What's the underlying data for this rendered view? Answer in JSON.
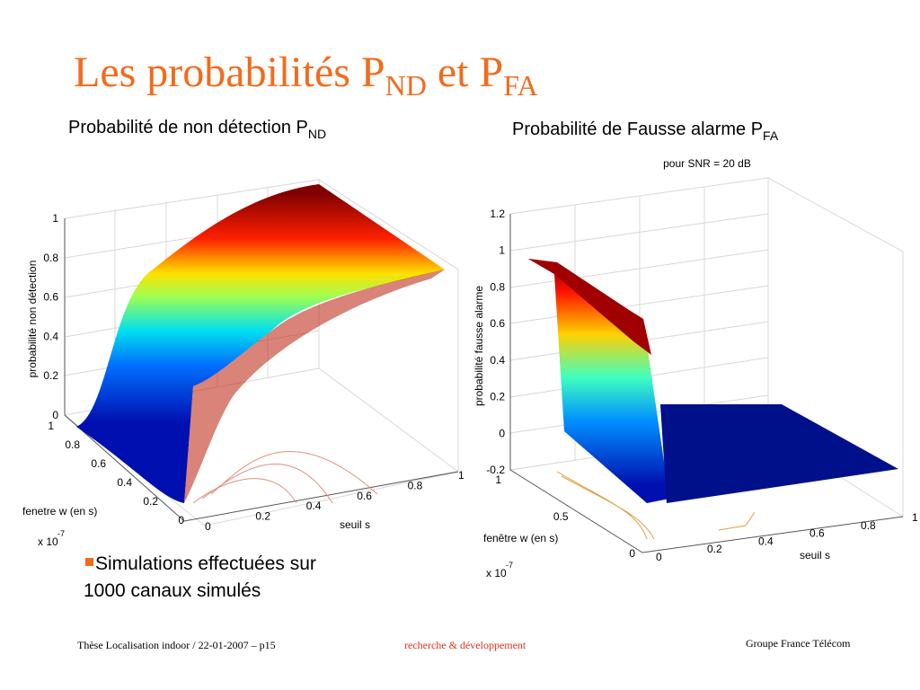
{
  "title": {
    "main": "Les probabilités P",
    "sub1": "ND",
    "mid": " et P",
    "sub2": "FA"
  },
  "plots": [
    {
      "heading": "Probabilité de non détection P",
      "heading_sub": "ND",
      "zlabel": "probabilité non détection",
      "zticks": [
        "0",
        "0.2",
        "0.4",
        "0.6",
        "0.8",
        "1"
      ],
      "wlabel": "fenetre w (en s)",
      "wticks": [
        "1",
        "0.8",
        "0.6",
        "0.4",
        "0.2",
        "0"
      ],
      "wscale": "x 10",
      "wscale_exp": "-7",
      "slabel": "seuil s",
      "sticks": [
        "0",
        "0.2",
        "0.4",
        "0.6",
        "0.8",
        "1"
      ]
    },
    {
      "heading": "Probabilité de Fausse alarme P",
      "heading_sub": "FA",
      "note": "pour SNR = 20 dB",
      "zlabel": "probabilité fausse alarme",
      "zticks": [
        "-0.2",
        "0",
        "0.2",
        "0.4",
        "0.6",
        "0.8",
        "1",
        "1.2"
      ],
      "wlabel": "fenêtre w (en s)",
      "wticks": [
        "1",
        "0.5",
        "0"
      ],
      "wscale": "x 10",
      "wscale_exp": "-7",
      "slabel": "seuil s",
      "sticks": [
        "0",
        "0.2",
        "0.4",
        "0.6",
        "0.8",
        "1"
      ]
    }
  ],
  "bullet": {
    "line1": "Simulations effectuées sur",
    "line2": "1000 canaux simulés"
  },
  "footer": {
    "left": "Thèse Localisation indoor / 22-01-2007 –  p15",
    "center": "recherche & développement",
    "right": "Groupe France Télécom"
  }
}
